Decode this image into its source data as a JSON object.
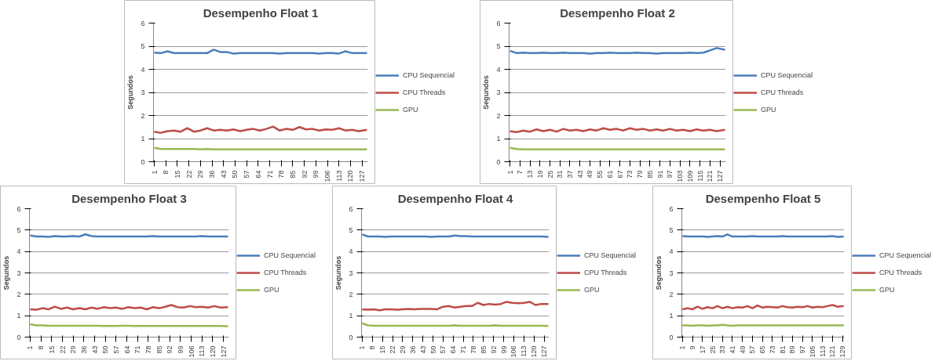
{
  "chart_data": [
    {
      "type": "line",
      "title": "Desempenho Float 1",
      "ylabel": "Segundos",
      "legend": "right",
      "grid": "y",
      "ylim": [
        0,
        6
      ],
      "yticks": [
        0,
        1,
        2,
        3,
        4,
        5,
        6
      ],
      "xlim": [
        0.5,
        130.5
      ],
      "xticks": [
        1,
        8,
        15,
        22,
        29,
        36,
        43,
        50,
        57,
        64,
        71,
        78,
        85,
        92,
        99,
        106,
        113,
        120,
        127
      ],
      "x": [
        1,
        5,
        9,
        13,
        17,
        21,
        25,
        29,
        33,
        37,
        41,
        45,
        49,
        53,
        57,
        61,
        65,
        69,
        73,
        77,
        81,
        85,
        89,
        93,
        97,
        101,
        105,
        109,
        113,
        117,
        121,
        125,
        130
      ],
      "series": [
        {
          "name": "CPU Sequencial",
          "color": "#4a7ebb",
          "values": [
            4.72,
            4.7,
            4.78,
            4.7,
            4.7,
            4.7,
            4.7,
            4.7,
            4.7,
            4.85,
            4.75,
            4.75,
            4.68,
            4.7,
            4.7,
            4.7,
            4.7,
            4.7,
            4.7,
            4.68,
            4.7,
            4.7,
            4.7,
            4.7,
            4.7,
            4.68,
            4.7,
            4.7,
            4.68,
            4.78,
            4.7,
            4.7,
            4.7
          ]
        },
        {
          "name": "CPU Threads",
          "color": "#be4b48",
          "values": [
            1.3,
            1.25,
            1.32,
            1.35,
            1.3,
            1.45,
            1.3,
            1.35,
            1.45,
            1.35,
            1.38,
            1.35,
            1.4,
            1.32,
            1.38,
            1.42,
            1.35,
            1.42,
            1.52,
            1.35,
            1.42,
            1.38,
            1.5,
            1.4,
            1.42,
            1.35,
            1.4,
            1.38,
            1.45,
            1.35,
            1.38,
            1.32,
            1.38
          ]
        },
        {
          "name": "GPU",
          "color": "#98b954",
          "values": [
            0.6,
            0.55,
            0.55,
            0.55,
            0.55,
            0.55,
            0.55,
            0.53,
            0.55,
            0.53,
            0.53,
            0.53,
            0.53,
            0.53,
            0.53,
            0.53,
            0.53,
            0.53,
            0.53,
            0.53,
            0.53,
            0.53,
            0.53,
            0.53,
            0.53,
            0.53,
            0.53,
            0.53,
            0.53,
            0.53,
            0.53,
            0.53,
            0.53
          ]
        }
      ]
    },
    {
      "type": "line",
      "title": "Desempenho Float 2",
      "ylabel": "Segundos",
      "legend": "right",
      "grid": "y",
      "ylim": [
        0,
        6
      ],
      "yticks": [
        0,
        1,
        2,
        3,
        4,
        5,
        6
      ],
      "xlim": [
        0.5,
        130.5
      ],
      "xticks": [
        1,
        7,
        13,
        19,
        25,
        31,
        37,
        43,
        49,
        55,
        61,
        67,
        73,
        79,
        85,
        91,
        97,
        103,
        109,
        115,
        121,
        127
      ],
      "x": [
        1,
        5,
        9,
        13,
        17,
        21,
        25,
        29,
        33,
        37,
        41,
        45,
        49,
        53,
        57,
        61,
        65,
        69,
        73,
        77,
        81,
        85,
        89,
        93,
        97,
        101,
        105,
        109,
        113,
        117,
        121,
        125,
        130
      ],
      "series": [
        {
          "name": "CPU Sequencial",
          "color": "#4a7ebb",
          "values": [
            4.8,
            4.7,
            4.72,
            4.7,
            4.7,
            4.72,
            4.7,
            4.7,
            4.72,
            4.7,
            4.7,
            4.7,
            4.68,
            4.7,
            4.7,
            4.72,
            4.7,
            4.7,
            4.7,
            4.72,
            4.7,
            4.7,
            4.68,
            4.7,
            4.7,
            4.7,
            4.7,
            4.72,
            4.7,
            4.72,
            4.82,
            4.92,
            4.85
          ]
        },
        {
          "name": "CPU Threads",
          "color": "#be4b48",
          "values": [
            1.32,
            1.28,
            1.35,
            1.3,
            1.4,
            1.32,
            1.38,
            1.3,
            1.42,
            1.35,
            1.38,
            1.32,
            1.4,
            1.35,
            1.45,
            1.38,
            1.42,
            1.35,
            1.45,
            1.38,
            1.42,
            1.35,
            1.4,
            1.35,
            1.42,
            1.35,
            1.38,
            1.32,
            1.4,
            1.35,
            1.38,
            1.32,
            1.38
          ]
        },
        {
          "name": "GPU",
          "color": "#98b954",
          "values": [
            0.6,
            0.55,
            0.53,
            0.53,
            0.53,
            0.53,
            0.53,
            0.53,
            0.53,
            0.53,
            0.53,
            0.53,
            0.53,
            0.53,
            0.53,
            0.53,
            0.53,
            0.53,
            0.53,
            0.53,
            0.53,
            0.53,
            0.53,
            0.53,
            0.53,
            0.53,
            0.53,
            0.53,
            0.53,
            0.53,
            0.53,
            0.53,
            0.53
          ]
        }
      ]
    },
    {
      "type": "line",
      "title": "Desempenho Float 3",
      "ylabel": "Segundos",
      "legend": "right",
      "grid": "y",
      "ylim": [
        0,
        6
      ],
      "yticks": [
        0,
        1,
        2,
        3,
        4,
        5,
        6
      ],
      "xlim": [
        0.5,
        130.5
      ],
      "xticks": [
        1,
        8,
        15,
        22,
        29,
        36,
        43,
        50,
        57,
        64,
        71,
        78,
        85,
        92,
        99,
        106,
        113,
        120,
        127
      ],
      "x": [
        1,
        5,
        9,
        13,
        17,
        21,
        25,
        29,
        33,
        37,
        41,
        45,
        49,
        53,
        57,
        61,
        65,
        69,
        73,
        77,
        81,
        85,
        89,
        93,
        97,
        101,
        105,
        109,
        113,
        117,
        121,
        125,
        130
      ],
      "series": [
        {
          "name": "CPU Sequencial",
          "color": "#4a7ebb",
          "values": [
            4.75,
            4.7,
            4.7,
            4.68,
            4.72,
            4.7,
            4.7,
            4.72,
            4.7,
            4.8,
            4.72,
            4.7,
            4.7,
            4.7,
            4.7,
            4.7,
            4.7,
            4.7,
            4.7,
            4.7,
            4.72,
            4.7,
            4.7,
            4.7,
            4.7,
            4.7,
            4.7,
            4.7,
            4.72,
            4.7,
            4.7,
            4.7,
            4.7
          ]
        },
        {
          "name": "CPU Threads",
          "color": "#be4b48",
          "values": [
            1.3,
            1.28,
            1.35,
            1.3,
            1.42,
            1.32,
            1.38,
            1.3,
            1.35,
            1.3,
            1.38,
            1.32,
            1.4,
            1.35,
            1.38,
            1.32,
            1.4,
            1.35,
            1.38,
            1.3,
            1.4,
            1.35,
            1.42,
            1.5,
            1.4,
            1.38,
            1.45,
            1.4,
            1.42,
            1.38,
            1.45,
            1.38,
            1.4
          ]
        },
        {
          "name": "GPU",
          "color": "#98b954",
          "values": [
            0.6,
            0.55,
            0.55,
            0.53,
            0.53,
            0.53,
            0.53,
            0.53,
            0.53,
            0.53,
            0.53,
            0.53,
            0.52,
            0.52,
            0.52,
            0.53,
            0.53,
            0.52,
            0.52,
            0.52,
            0.52,
            0.52,
            0.52,
            0.52,
            0.52,
            0.52,
            0.52,
            0.52,
            0.52,
            0.52,
            0.52,
            0.52,
            0.5
          ]
        }
      ]
    },
    {
      "type": "line",
      "title": "Desempenho Float 4",
      "ylabel": "Segundos",
      "legend": "right",
      "grid": "y",
      "ylim": [
        0,
        6
      ],
      "yticks": [
        0,
        1,
        2,
        3,
        4,
        5,
        6
      ],
      "xlim": [
        0.5,
        130.5
      ],
      "xticks": [
        1,
        8,
        15,
        22,
        29,
        36,
        43,
        50,
        57,
        64,
        71,
        78,
        85,
        92,
        99,
        106,
        113,
        120,
        127
      ],
      "x": [
        1,
        5,
        9,
        13,
        17,
        21,
        25,
        29,
        33,
        37,
        41,
        45,
        49,
        53,
        57,
        61,
        65,
        69,
        73,
        77,
        81,
        85,
        89,
        93,
        97,
        101,
        105,
        109,
        113,
        117,
        121,
        125,
        130
      ],
      "series": [
        {
          "name": "CPU Sequencial",
          "color": "#4a7ebb",
          "values": [
            4.8,
            4.7,
            4.7,
            4.7,
            4.68,
            4.7,
            4.7,
            4.7,
            4.7,
            4.7,
            4.7,
            4.7,
            4.68,
            4.7,
            4.7,
            4.7,
            4.75,
            4.72,
            4.72,
            4.7,
            4.7,
            4.7,
            4.7,
            4.7,
            4.7,
            4.7,
            4.7,
            4.7,
            4.7,
            4.7,
            4.7,
            4.7,
            4.68
          ]
        },
        {
          "name": "CPU Threads",
          "color": "#be4b48",
          "values": [
            1.3,
            1.28,
            1.3,
            1.25,
            1.3,
            1.3,
            1.28,
            1.3,
            1.32,
            1.3,
            1.32,
            1.32,
            1.32,
            1.3,
            1.42,
            1.45,
            1.38,
            1.42,
            1.45,
            1.45,
            1.6,
            1.5,
            1.55,
            1.52,
            1.55,
            1.65,
            1.6,
            1.58,
            1.6,
            1.65,
            1.5,
            1.55,
            1.55
          ]
        },
        {
          "name": "GPU",
          "color": "#98b954",
          "values": [
            0.65,
            0.55,
            0.53,
            0.53,
            0.53,
            0.53,
            0.53,
            0.53,
            0.53,
            0.53,
            0.53,
            0.53,
            0.53,
            0.53,
            0.53,
            0.53,
            0.55,
            0.53,
            0.53,
            0.53,
            0.53,
            0.53,
            0.53,
            0.55,
            0.53,
            0.53,
            0.53,
            0.53,
            0.53,
            0.53,
            0.53,
            0.53,
            0.52
          ]
        }
      ]
    },
    {
      "type": "line",
      "title": "Desempenho Float 5",
      "ylabel": "Segundos",
      "legend": "right",
      "grid": "y",
      "ylim": [
        0,
        6
      ],
      "yticks": [
        0,
        1,
        2,
        3,
        4,
        5,
        6
      ],
      "xlim": [
        0.5,
        130.5
      ],
      "xticks": [
        1,
        9,
        17,
        25,
        33,
        41,
        49,
        57,
        65,
        73,
        81,
        89,
        97,
        105,
        113,
        121,
        129
      ],
      "x": [
        1,
        5,
        9,
        13,
        17,
        21,
        25,
        29,
        33,
        37,
        41,
        45,
        49,
        53,
        57,
        61,
        65,
        69,
        73,
        77,
        81,
        85,
        89,
        93,
        97,
        101,
        105,
        109,
        113,
        117,
        121,
        125,
        130
      ],
      "series": [
        {
          "name": "CPU Sequencial",
          "color": "#4a7ebb",
          "values": [
            4.72,
            4.7,
            4.7,
            4.7,
            4.7,
            4.68,
            4.7,
            4.72,
            4.7,
            4.8,
            4.7,
            4.7,
            4.7,
            4.7,
            4.72,
            4.7,
            4.7,
            4.7,
            4.7,
            4.7,
            4.72,
            4.7,
            4.7,
            4.7,
            4.7,
            4.7,
            4.7,
            4.7,
            4.7,
            4.7,
            4.72,
            4.68,
            4.7
          ]
        },
        {
          "name": "CPU Threads",
          "color": "#be4b48",
          "values": [
            1.3,
            1.35,
            1.3,
            1.42,
            1.32,
            1.4,
            1.35,
            1.45,
            1.35,
            1.42,
            1.35,
            1.4,
            1.38,
            1.45,
            1.35,
            1.48,
            1.38,
            1.42,
            1.4,
            1.38,
            1.45,
            1.4,
            1.38,
            1.42,
            1.4,
            1.45,
            1.38,
            1.42,
            1.4,
            1.45,
            1.5,
            1.42,
            1.45
          ]
        },
        {
          "name": "GPU",
          "color": "#98b954",
          "values": [
            0.55,
            0.55,
            0.53,
            0.55,
            0.55,
            0.53,
            0.55,
            0.55,
            0.58,
            0.55,
            0.53,
            0.55,
            0.55,
            0.55,
            0.55,
            0.55,
            0.55,
            0.55,
            0.55,
            0.55,
            0.55,
            0.55,
            0.55,
            0.55,
            0.55,
            0.55,
            0.55,
            0.55,
            0.55,
            0.55,
            0.55,
            0.55,
            0.55
          ]
        }
      ]
    }
  ]
}
